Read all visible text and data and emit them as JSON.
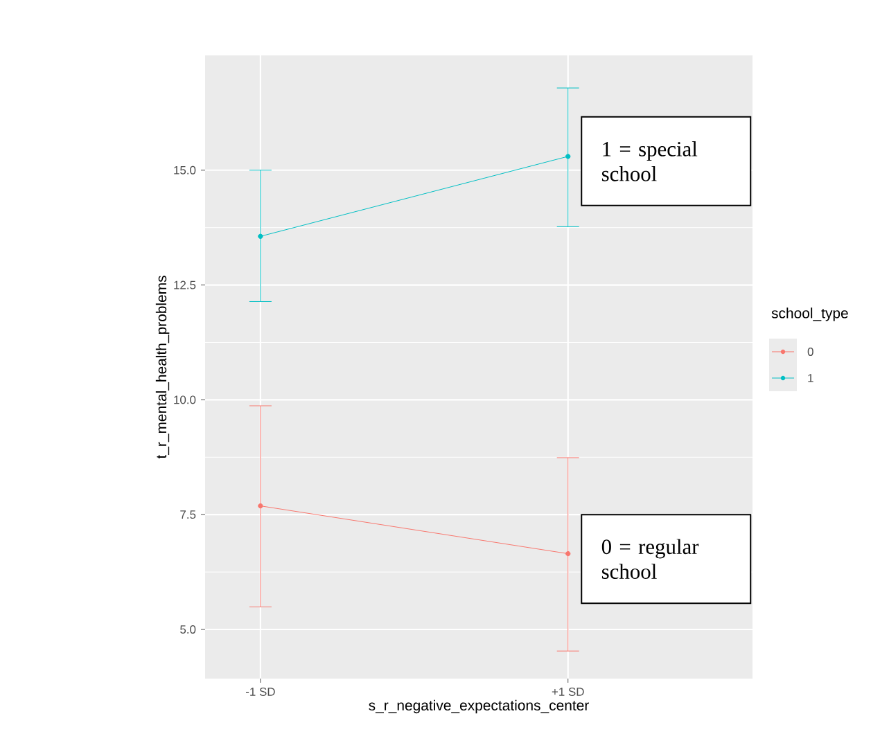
{
  "chart_data": {
    "type": "line",
    "categories": [
      "-1 SD",
      "+1 SD"
    ],
    "xlabel": "s_r_negative_expectations_center",
    "ylabel": "t_r_mental_health_problems",
    "legend_title": "school_type",
    "series": [
      {
        "name": "0",
        "color": "#f8766d",
        "values": [
          7.69,
          6.65
        ],
        "errors": [
          [
            5.49,
            9.87
          ],
          [
            4.53,
            8.74
          ]
        ]
      },
      {
        "name": "1",
        "color": "#00bfc4",
        "values": [
          13.56,
          15.3
        ],
        "errors": [
          [
            12.14,
            15.0
          ],
          [
            13.77,
            16.79
          ]
        ]
      }
    ],
    "ylim": [
      3.93,
      17.5
    ],
    "yticks": [
      {
        "value": 5,
        "label": "5.0"
      },
      {
        "value": 7.5,
        "label": "7.5"
      },
      {
        "value": 10,
        "label": "10.0"
      },
      {
        "value": 12.5,
        "label": "12.5"
      },
      {
        "value": 15,
        "label": "15.0"
      }
    ],
    "grid": true,
    "legend": "right",
    "marker": "circle",
    "line_style": "solid",
    "annotations": [
      "1 = special school",
      "0 = regular school"
    ]
  }
}
